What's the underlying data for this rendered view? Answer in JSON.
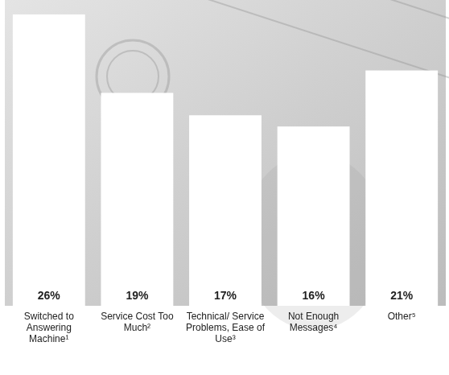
{
  "chart_data": {
    "type": "bar",
    "categories": [
      "Switched to Answering Machine¹",
      "Service Cost Too Much²",
      "Technical/ Service Problems, Ease of Use³",
      "Not Enough Messages⁴",
      "Other⁵"
    ],
    "values": [
      26,
      19,
      17,
      16,
      21
    ],
    "value_labels": [
      "26%",
      "19%",
      "17%",
      "16%",
      "21%"
    ],
    "color": "#ffffff",
    "ylim": [
      0,
      27
    ],
    "data_labels": true,
    "tick_labels": "x"
  }
}
